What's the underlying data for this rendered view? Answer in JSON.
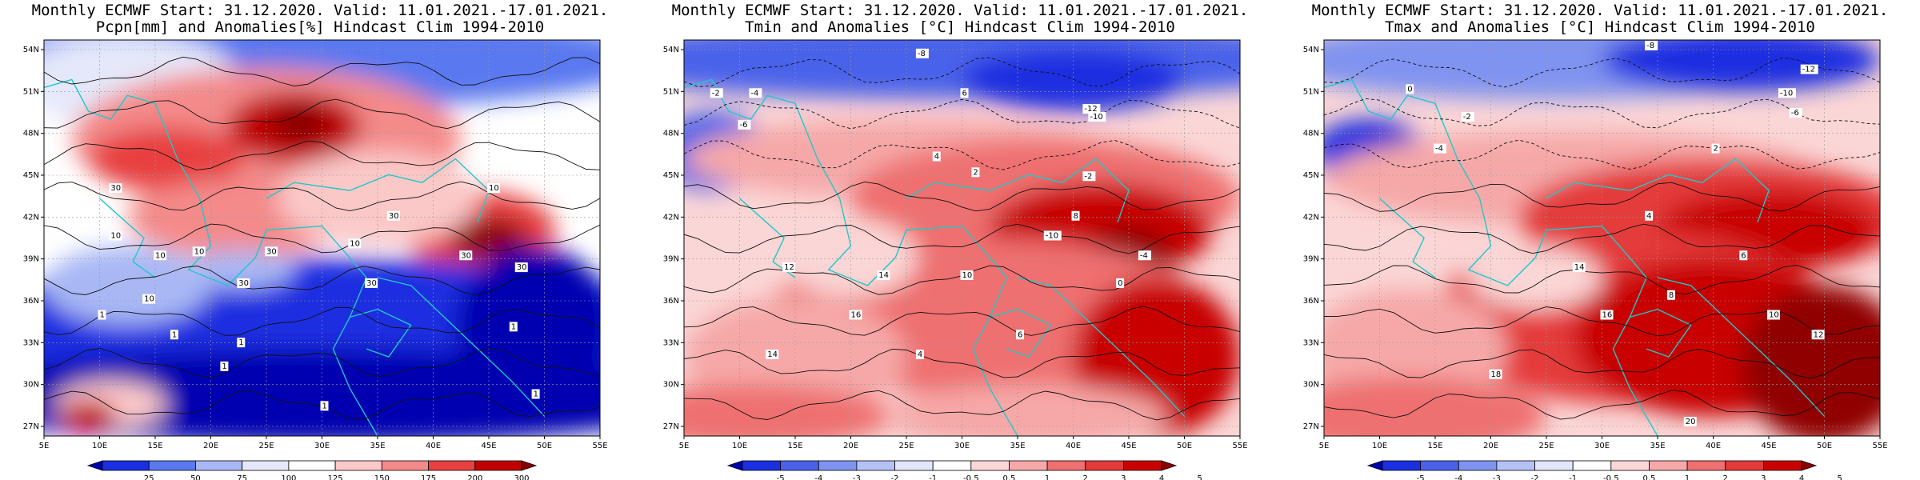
{
  "panels": [
    {
      "title1": "Monthly ECMWF Start: 31.12.2020. Valid: 11.01.2021.-17.01.2021.",
      "title2": "Pcpn[mm] and Anomalies[%] Hindcast Clim 1994-2010",
      "colorbar": {
        "labels": [
          "25",
          "50",
          "75",
          "100",
          "125",
          "150",
          "175",
          "200",
          "300"
        ],
        "colors": [
          "#0000b0",
          "#1a2fe0",
          "#5a78f0",
          "#a9b8f5",
          "#e4e8fa",
          "#ffffff",
          "#fbc8c8",
          "#f48a8a",
          "#e84040",
          "#c00000",
          "#8a0000"
        ]
      },
      "contour_labels": [
        "30",
        "30",
        "30",
        "30",
        "30",
        "30",
        "30",
        "10",
        "10",
        "10",
        "10",
        "10",
        "10",
        "1",
        "1",
        "1",
        "1",
        "1",
        "1",
        "1"
      ]
    },
    {
      "title1": "Monthly ECMWF Start: 31.12.2020. Valid: 11.01.2021.-17.01.2021.",
      "title2": "Tmin and Anomalies [°C] Hindcast Clim 1994-2010",
      "colorbar": {
        "labels": [
          "-5",
          "-4",
          "-3",
          "-2",
          "-1",
          "-0.5",
          "0.5",
          "1",
          "2",
          "3",
          "4",
          "5"
        ],
        "colors": [
          "#0000b0",
          "#1a2fe0",
          "#4a62ea",
          "#7f93f0",
          "#b5c1f5",
          "#e1e6fa",
          "#ffffff",
          "#fbd6d6",
          "#f6a8a8",
          "#ef7070",
          "#e43a3a",
          "#c80000",
          "#900000"
        ]
      },
      "contour_labels": [
        "-8",
        "-2",
        "-4",
        "-12",
        "-10",
        "6",
        "-6",
        "4",
        "-2",
        "2",
        "8",
        "14",
        "12",
        "10",
        "16",
        "14",
        "-4",
        "6",
        "4",
        "-10",
        "0"
      ]
    },
    {
      "title1": "Monthly ECMWF Start: 31.12.2020. Valid: 11.01.2021.-17.01.2021.",
      "title2": "Tmax and Anomalies [°C] Hindcast Clim 1994-2010",
      "colorbar": {
        "labels": [
          "-5",
          "-4",
          "-3",
          "-2",
          "-1",
          "-0.5",
          "0.5",
          "1",
          "2",
          "3",
          "4",
          "5"
        ],
        "colors": [
          "#0000b0",
          "#1a2fe0",
          "#4a62ea",
          "#7f93f0",
          "#b5c1f5",
          "#e1e6fa",
          "#ffffff",
          "#fbd6d6",
          "#f6a8a8",
          "#ef7070",
          "#e43a3a",
          "#c80000",
          "#900000"
        ]
      },
      "contour_labels": [
        "-12",
        "-8",
        "-10",
        "-6",
        "0",
        "-2",
        "2",
        "4",
        "6",
        "8",
        "10",
        "12",
        "14",
        "16",
        "18",
        "20",
        "-4"
      ]
    }
  ],
  "axes": {
    "lat_labels": [
      "54N",
      "51N",
      "48N",
      "45N",
      "42N",
      "39N",
      "36N",
      "33N",
      "30N",
      "27N"
    ],
    "lon_labels": [
      "5E",
      "10E",
      "15E",
      "20E",
      "25E",
      "30E",
      "35E",
      "40E",
      "45E",
      "50E",
      "55E"
    ]
  }
}
